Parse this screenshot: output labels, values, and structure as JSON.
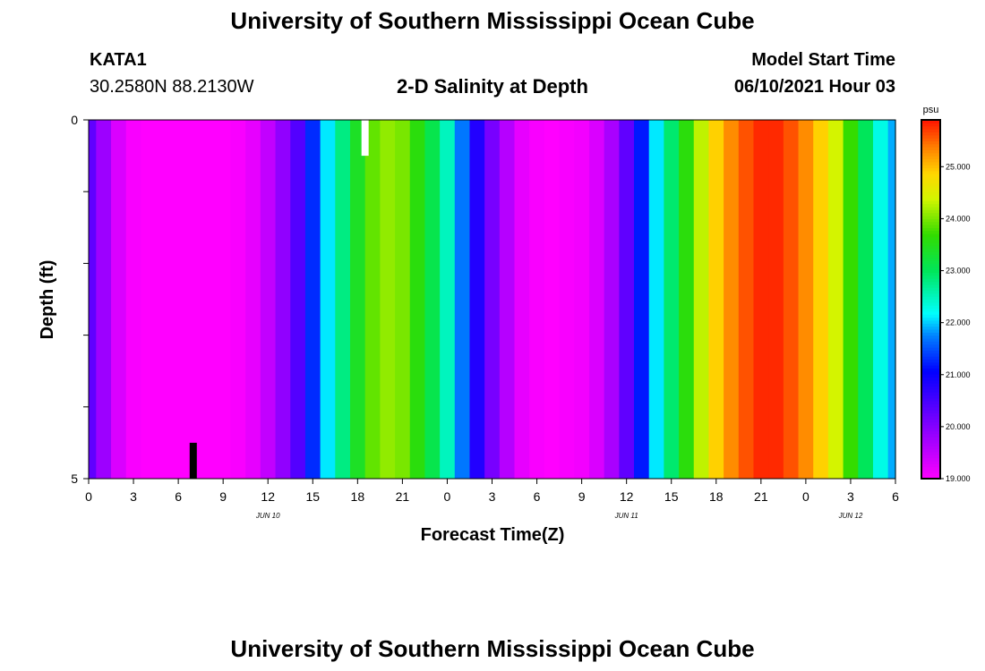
{
  "header": {
    "title": "University of Southern Mississippi Ocean Cube",
    "station": "KATA1",
    "location": "30.2580N  88.2130W",
    "subtitle": "2-D Salinity at Depth",
    "start_label": "Model Start Time",
    "start_value": "06/10/2021 Hour 03"
  },
  "footer": {
    "title": "University of Southern Mississippi Ocean Cube"
  },
  "chart_data": {
    "type": "heatmap",
    "title": "2-D Salinity at Depth",
    "xlabel": "Forecast Time(Z)",
    "ylabel": "Depth (ft)",
    "x_start_hour": 0,
    "x_end_hour": 54,
    "xlim": [
      0,
      54
    ],
    "x_tick_labels": [
      "0",
      "3",
      "6",
      "9",
      "12",
      "15",
      "18",
      "21",
      "0",
      "3",
      "6",
      "9",
      "12",
      "15",
      "18",
      "21",
      "0",
      "3",
      "6"
    ],
    "date_labels": [
      {
        "hour": 12,
        "text": "JUN 10"
      },
      {
        "hour": 36,
        "text": "JUN 11"
      },
      {
        "hour": 51,
        "text": "JUN 12"
      }
    ],
    "y_tick_labels": [
      "0",
      "5"
    ],
    "ylim": [
      0,
      5
    ],
    "colorbar": {
      "unit": "psu",
      "range": [
        19.0,
        25.9
      ],
      "tick_labels": [
        "19.000",
        "20.000",
        "21.000",
        "22.000",
        "23.000",
        "24.000",
        "25.000"
      ]
    },
    "salinity_hourly": [
      20.3,
      19.8,
      19.3,
      19.05,
      19.0,
      19.0,
      19.0,
      19.0,
      19.0,
      19.0,
      19.05,
      19.2,
      19.5,
      19.9,
      20.4,
      21.3,
      22.1,
      22.8,
      23.4,
      23.9,
      24.1,
      24.0,
      23.6,
      23.1,
      22.5,
      21.7,
      20.8,
      20.1,
      19.6,
      19.2,
      19.05,
      19.0,
      19.05,
      19.1,
      19.3,
      19.7,
      20.3,
      21.2,
      22.1,
      22.9,
      23.6,
      24.3,
      24.9,
      25.3,
      25.6,
      25.8,
      25.8,
      25.6,
      25.3,
      24.9,
      24.4,
      23.7,
      23.0,
      22.3,
      21.9
    ],
    "markers": [
      {
        "type": "current-time",
        "hour": 18.5,
        "color": "#ffffff",
        "depth_span": [
          0,
          0.5
        ]
      },
      {
        "type": "observation",
        "hour": 7,
        "color": "#000000",
        "depth_span": [
          4.5,
          5
        ]
      }
    ]
  }
}
